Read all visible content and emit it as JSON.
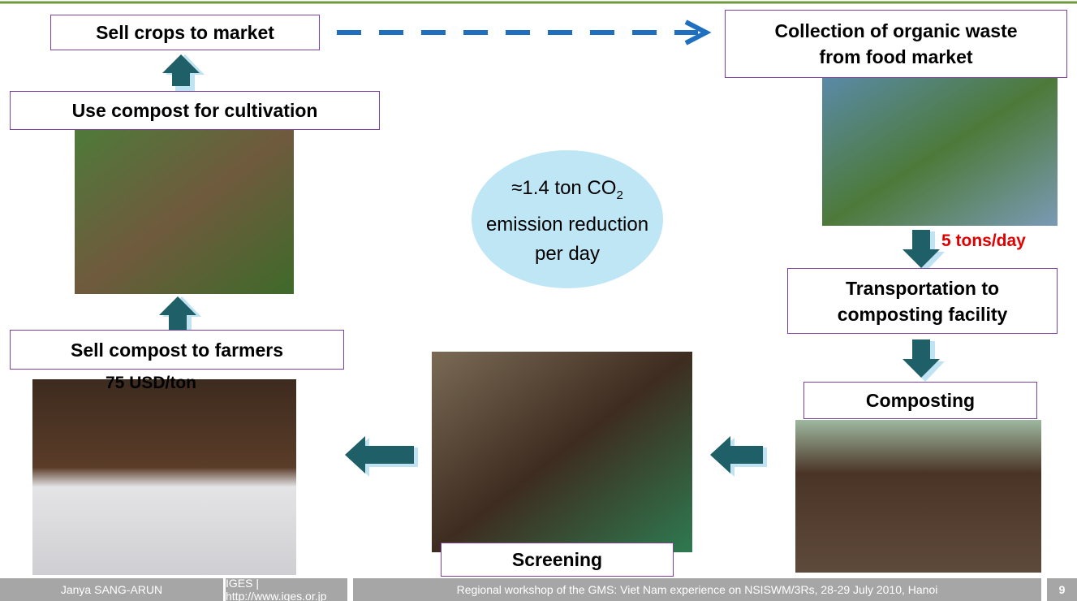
{
  "nodes": [
    {
      "lines": [
        "Sell crops to market"
      ]
    },
    {
      "lines": [
        "Collection of organic waste",
        "from food market"
      ]
    },
    {
      "lines": [
        "Transportation to",
        "composting facility"
      ]
    },
    {
      "lines": [
        "Composting"
      ]
    },
    {
      "lines": [
        "Screening"
      ]
    },
    {
      "lines": [
        "Sell compost to farmers"
      ]
    },
    {
      "lines": [
        "Use compost for cultivation"
      ]
    }
  ],
  "annotations": {
    "rate": "5 tons/day",
    "price": "75 USD/ton"
  },
  "ellipse": {
    "line1": "≈1.4 ton CO",
    "subscript": "2",
    "line2": "emission reduction",
    "line3": "per day"
  },
  "footer": {
    "author": "Janya SANG-ARUN",
    "org": "IGES | http://www.iges.or.jp",
    "event": "Regional workshop of the GMS: Viet Nam experience on NSISWM/3Rs, 28-29 July 2010, Hanoi",
    "page": "9"
  }
}
